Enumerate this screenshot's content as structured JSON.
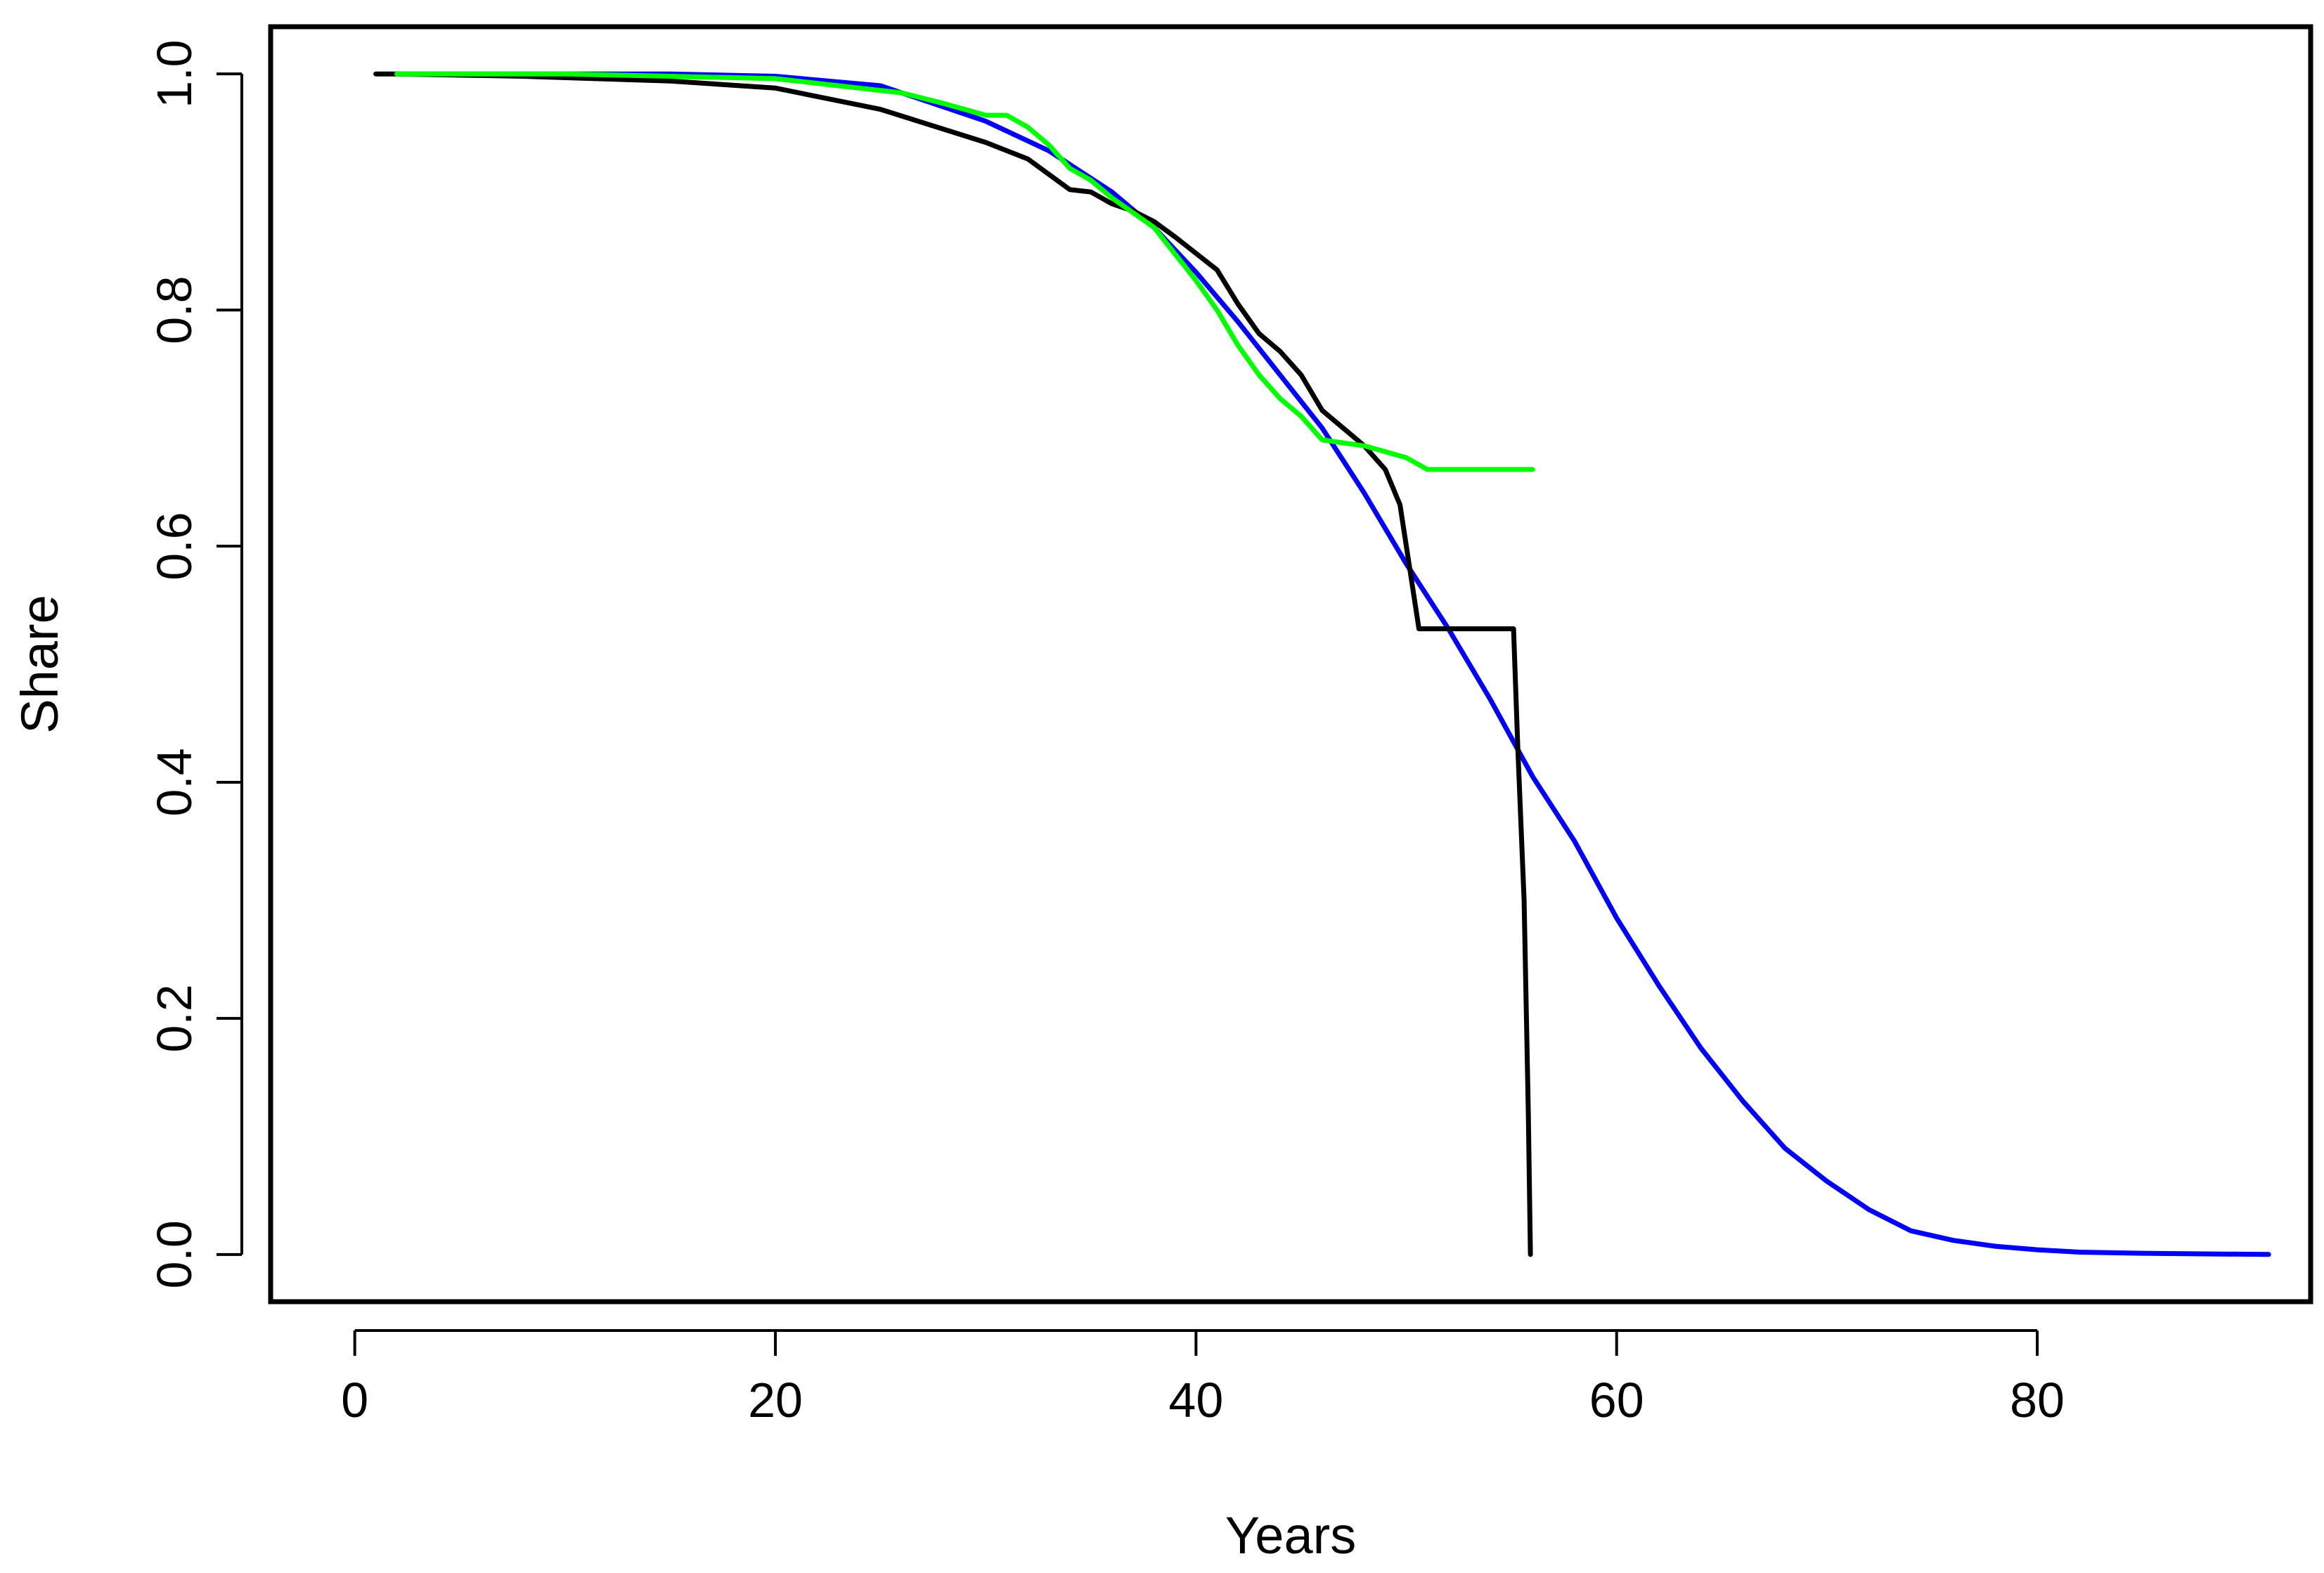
{
  "chart_data": {
    "type": "line",
    "title": "",
    "xlabel": "Years",
    "ylabel": "Share",
    "xlim": [
      -4,
      93
    ],
    "ylim": [
      -0.04,
      1.04
    ],
    "x_ticks": [
      0,
      20,
      40,
      60,
      80
    ],
    "x_tick_labels": [
      "0",
      "20",
      "40",
      "60",
      "80"
    ],
    "y_ticks": [
      0.0,
      0.2,
      0.4,
      0.6,
      0.8,
      1.0
    ],
    "y_tick_labels": [
      "0.0",
      "0.2",
      "0.4",
      "0.6",
      "0.8",
      "1.0"
    ],
    "grid": false,
    "legend": false,
    "series": [
      {
        "color": "#0000ff",
        "points": [
          [
            2,
            1.0
          ],
          [
            10,
            1.0
          ],
          [
            15,
            1.0
          ],
          [
            20,
            0.998
          ],
          [
            25,
            0.99
          ],
          [
            30,
            0.96
          ],
          [
            33,
            0.935
          ],
          [
            36,
            0.9
          ],
          [
            38,
            0.87
          ],
          [
            40,
            0.832
          ],
          [
            42,
            0.79
          ],
          [
            44,
            0.745
          ],
          [
            46,
            0.7
          ],
          [
            48,
            0.645
          ],
          [
            50,
            0.585
          ],
          [
            52,
            0.53
          ],
          [
            54,
            0.47
          ],
          [
            56,
            0.405
          ],
          [
            58,
            0.35
          ],
          [
            60,
            0.285
          ],
          [
            62,
            0.228
          ],
          [
            64,
            0.175
          ],
          [
            66,
            0.13
          ],
          [
            68,
            0.09
          ],
          [
            70,
            0.062
          ],
          [
            72,
            0.038
          ],
          [
            74,
            0.02
          ],
          [
            76,
            0.012
          ],
          [
            78,
            0.007
          ],
          [
            80,
            0.004
          ],
          [
            82,
            0.002
          ],
          [
            85,
            0.001
          ],
          [
            91,
            0.0
          ]
        ]
      },
      {
        "color": "#000000",
        "points": [
          [
            1,
            1.0
          ],
          [
            2,
            1.0
          ],
          [
            8,
            0.998
          ],
          [
            15,
            0.994
          ],
          [
            20,
            0.988
          ],
          [
            25,
            0.97
          ],
          [
            30,
            0.942
          ],
          [
            32,
            0.928
          ],
          [
            34,
            0.902
          ],
          [
            35,
            0.9
          ],
          [
            36,
            0.89
          ],
          [
            37,
            0.884
          ],
          [
            38,
            0.875
          ],
          [
            39,
            0.862
          ],
          [
            40,
            0.848
          ],
          [
            41,
            0.834
          ],
          [
            42,
            0.805
          ],
          [
            43,
            0.78
          ],
          [
            44,
            0.765
          ],
          [
            45,
            0.745
          ],
          [
            46,
            0.715
          ],
          [
            47,
            0.7
          ],
          [
            48,
            0.685
          ],
          [
            49,
            0.665
          ],
          [
            49.7,
            0.635
          ],
          [
            50.6,
            0.53
          ],
          [
            55.1,
            0.53
          ],
          [
            55.3,
            0.43
          ],
          [
            55.6,
            0.3
          ],
          [
            55.8,
            0.12
          ],
          [
            55.9,
            0.0
          ]
        ]
      },
      {
        "color": "#00ff00",
        "points": [
          [
            2,
            1.0
          ],
          [
            10,
            1.0
          ],
          [
            15,
            0.998
          ],
          [
            20,
            0.996
          ],
          [
            23,
            0.99
          ],
          [
            26,
            0.984
          ],
          [
            28,
            0.975
          ],
          [
            30,
            0.965
          ],
          [
            31,
            0.965
          ],
          [
            32,
            0.955
          ],
          [
            33,
            0.94
          ],
          [
            34,
            0.92
          ],
          [
            35,
            0.91
          ],
          [
            36,
            0.895
          ],
          [
            38,
            0.87
          ],
          [
            40,
            0.825
          ],
          [
            41,
            0.8
          ],
          [
            42,
            0.77
          ],
          [
            43,
            0.745
          ],
          [
            44,
            0.725
          ],
          [
            45,
            0.71
          ],
          [
            46,
            0.69
          ],
          [
            48,
            0.685
          ],
          [
            50,
            0.675
          ],
          [
            51,
            0.665
          ],
          [
            53,
            0.665
          ],
          [
            56,
            0.665
          ]
        ]
      }
    ]
  }
}
